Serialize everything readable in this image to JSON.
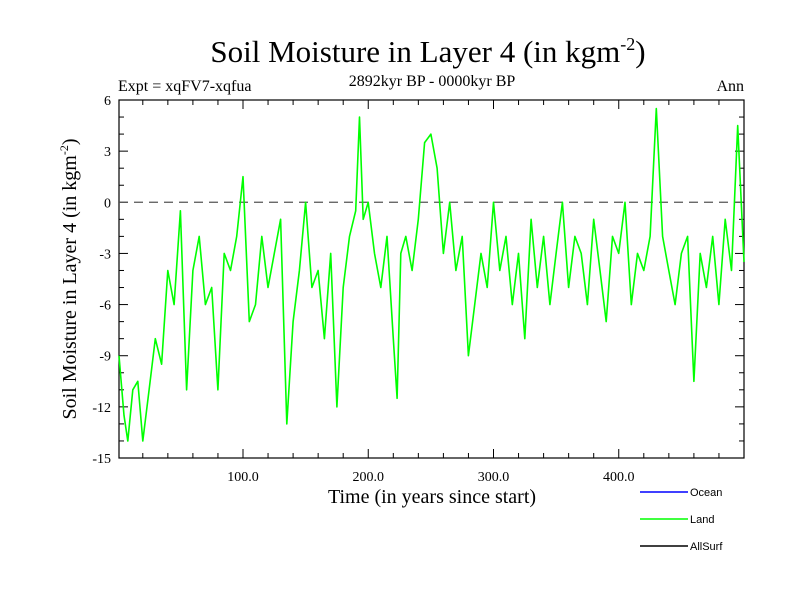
{
  "header": {
    "title": "Soil Moisture in Layer 4 (in kgm",
    "title_sup": "-2",
    "title_close": ")",
    "expt": "Expt = xqFV7-xqfua",
    "period": "2892kyr BP - 0000kyr BP",
    "season": "Ann"
  },
  "chart_data": {
    "type": "line",
    "title": "Soil Moisture in Layer 4 (in kgm-2)",
    "xlabel": "Time (in years since start)",
    "ylabel_main": "Soil Moisture in Layer 4 (in kgm",
    "ylabel_sup": "-2",
    "ylabel_close": ")",
    "xlim": [
      1,
      500
    ],
    "ylim": [
      -15,
      6
    ],
    "xticks": [
      100,
      200,
      300,
      400
    ],
    "xtick_labels": [
      "100.0",
      "200.0",
      "300.0",
      "400.0"
    ],
    "yticks": [
      6,
      3,
      0,
      -3,
      -6,
      -9,
      -12,
      -15
    ],
    "ytick_labels": [
      "6",
      "3",
      "0",
      "-3",
      "-6",
      "-9",
      "-12",
      "-15"
    ],
    "zero_line": 0,
    "series": [
      {
        "name": "Ocean",
        "color": "#0000ff",
        "values": []
      },
      {
        "name": "Land",
        "color": "#00ff00",
        "x": [
          1,
          5,
          8,
          12,
          16,
          20,
          25,
          30,
          35,
          40,
          45,
          50,
          55,
          60,
          65,
          70,
          75,
          80,
          85,
          90,
          95,
          100,
          105,
          110,
          115,
          120,
          125,
          130,
          135,
          140,
          145,
          150,
          155,
          160,
          165,
          170,
          175,
          180,
          185,
          190,
          193,
          196,
          200,
          205,
          210,
          215,
          220,
          223,
          226,
          230,
          235,
          240,
          245,
          250,
          255,
          260,
          265,
          270,
          275,
          280,
          285,
          290,
          295,
          300,
          305,
          310,
          315,
          320,
          325,
          330,
          335,
          340,
          345,
          350,
          355,
          360,
          365,
          370,
          375,
          380,
          385,
          390,
          395,
          400,
          405,
          410,
          415,
          420,
          425,
          430,
          435,
          440,
          445,
          450,
          455,
          460,
          465,
          470,
          475,
          480,
          485,
          490,
          495,
          500
        ],
        "values": [
          -9,
          -12.5,
          -14,
          -11,
          -10.5,
          -14,
          -11,
          -8,
          -9.5,
          -4,
          -6,
          -0.5,
          -11,
          -4,
          -2,
          -6,
          -5,
          -11,
          -3,
          -4,
          -2,
          1.5,
          -7,
          -6,
          -2,
          -5,
          -3,
          -1,
          -13,
          -7,
          -4,
          0,
          -5,
          -4,
          -8,
          -3,
          -12,
          -5,
          -2,
          -0.5,
          5,
          -1,
          0,
          -3,
          -5,
          -2,
          -8,
          -11.5,
          -3,
          -2,
          -4,
          -1,
          3.5,
          4,
          2,
          -3,
          0,
          -4,
          -2,
          -9,
          -6,
          -3,
          -5,
          0,
          -4,
          -2,
          -6,
          -3,
          -8,
          -1,
          -5,
          -2,
          -6,
          -3,
          0,
          -5,
          -2,
          -3,
          -6,
          -1,
          -4,
          -7,
          -2,
          -3,
          0,
          -6,
          -3,
          -4,
          -2,
          5.5,
          -2,
          -4,
          -6,
          -3,
          -2,
          -10.5,
          -3,
          -5,
          -2,
          -6,
          -1,
          -4,
          4.5,
          -3.5
        ]
      },
      {
        "name": "AllSurf",
        "color": "#000000",
        "values": []
      }
    ],
    "legend_position": "bottom-right"
  }
}
